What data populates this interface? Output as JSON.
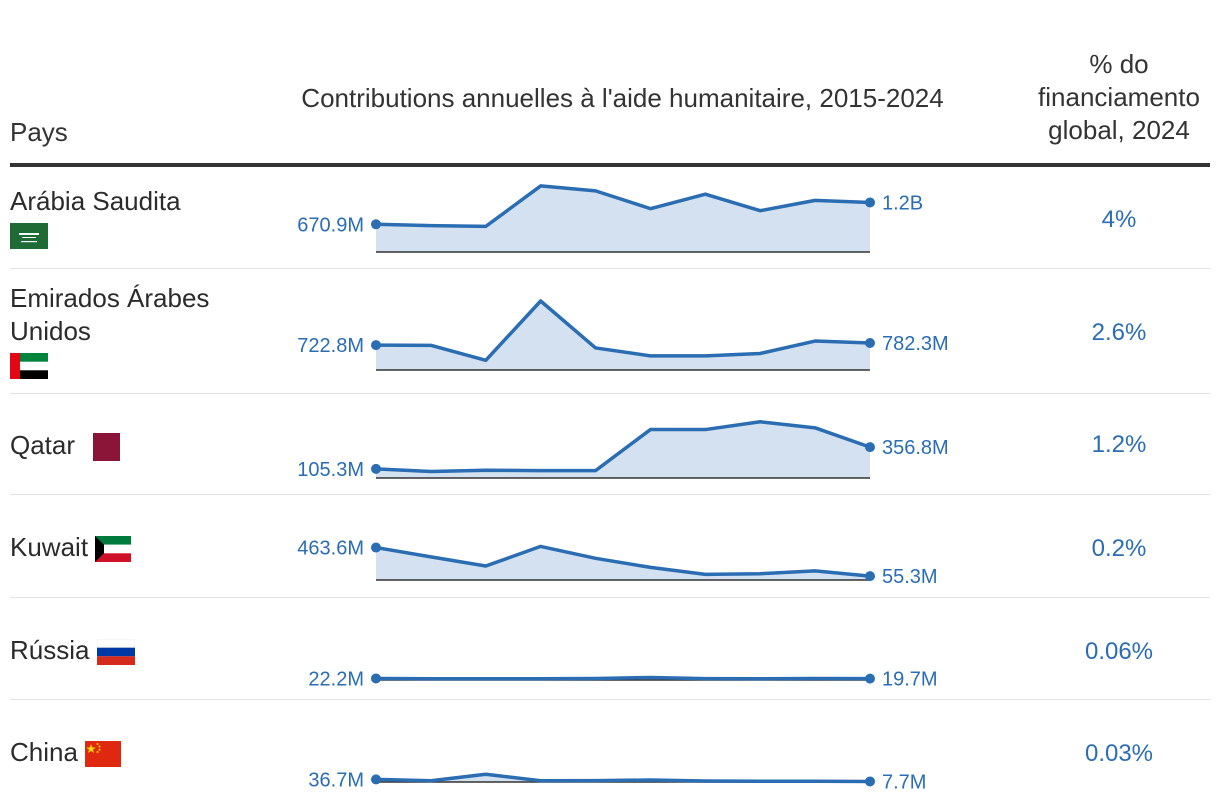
{
  "header": {
    "country": "Pays",
    "spark_title": "Contributions annuelles à l'aide humanitaire, 2015-2024",
    "pct_title": "% do financiamento global, 2024"
  },
  "colors": {
    "line": "#2a6db3",
    "area": "#d3e1f0",
    "text_blue": "#2a6db3"
  },
  "chart_data": {
    "type": "table",
    "x": [
      2015,
      2016,
      2017,
      2018,
      2019,
      2020,
      2021,
      2022,
      2023,
      2024
    ],
    "rows": [
      {
        "country": "Arábia Saudita",
        "flag": "saudi-arabia-flag",
        "start_label": "670.9M",
        "end_label": "1.2B",
        "pct": "4%",
        "values": [
          670.9,
          640,
          620,
          1600,
          1480,
          1050,
          1400,
          1000,
          1250,
          1200
        ]
      },
      {
        "country": "Emirados Árabes Unidos",
        "flag": "uae-flag",
        "start_label": "722.8M",
        "end_label": "782.3M",
        "pct": "2.6%",
        "values": [
          722.8,
          715,
          280,
          2000,
          640,
          410,
          410,
          480,
          840,
          782.3
        ]
      },
      {
        "country": "Qatar",
        "flag": "qatar-flag",
        "start_label": "105.3M",
        "end_label": "356.8M",
        "pct": "1.2%",
        "values": [
          105.3,
          75,
          90,
          85,
          85,
          560,
          560,
          650,
          580,
          356.8
        ]
      },
      {
        "country": "Kuwait",
        "flag": "kuwait-flag",
        "start_label": "463.6M",
        "end_label": "55.3M",
        "pct": "0.2%",
        "values": [
          463.6,
          330,
          200,
          480,
          310,
          180,
          80,
          90,
          130,
          55.3
        ]
      },
      {
        "country": "Rússia",
        "flag": "russia-flag",
        "start_label": "22.2M",
        "end_label": "19.7M",
        "pct": "0.06%",
        "values": [
          22.2,
          18,
          18,
          18,
          22,
          36,
          20,
          18,
          22,
          19.7
        ]
      },
      {
        "country": "China",
        "flag": "china-flag",
        "start_label": "36.7M",
        "end_label": "7.7M",
        "pct": "0.03%",
        "values": [
          36.7,
          18,
          110,
          18,
          20,
          28,
          15,
          10,
          10,
          7.7
        ]
      }
    ]
  }
}
